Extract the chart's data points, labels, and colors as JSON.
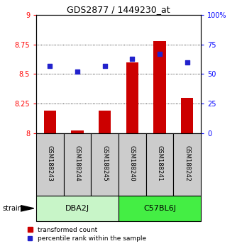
{
  "title": "GDS2877 / 1449230_at",
  "samples": [
    "GSM188243",
    "GSM188244",
    "GSM188245",
    "GSM188240",
    "GSM188241",
    "GSM188242"
  ],
  "red_values": [
    8.19,
    8.02,
    8.19,
    8.6,
    8.78,
    8.3
  ],
  "blue_values": [
    57,
    52,
    57,
    63,
    67,
    60
  ],
  "ylim_left": [
    8.0,
    9.0
  ],
  "ylim_right": [
    0,
    100
  ],
  "yticks_left": [
    8.0,
    8.25,
    8.5,
    8.75,
    9.0
  ],
  "ytick_labels_left": [
    "8",
    "8.25",
    "8.5",
    "8.75",
    "9"
  ],
  "yticks_right": [
    0,
    25,
    50,
    75,
    100
  ],
  "ytick_labels_right": [
    "0",
    "25",
    "50",
    "75",
    "100%"
  ],
  "groups": [
    {
      "label": "DBA2J",
      "start": 0,
      "end": 2,
      "color": "#c8f5c8"
    },
    {
      "label": "C57BL6J",
      "start": 3,
      "end": 5,
      "color": "#44ee44"
    }
  ],
  "strain_label": "strain",
  "red_color": "#cc0000",
  "blue_color": "#2222cc",
  "bar_base": 8.0,
  "legend_red": "transformed count",
  "legend_blue": "percentile rank within the sample",
  "sample_box_color": "#cccccc",
  "fig_width": 3.41,
  "fig_height": 3.54,
  "dpi": 100
}
